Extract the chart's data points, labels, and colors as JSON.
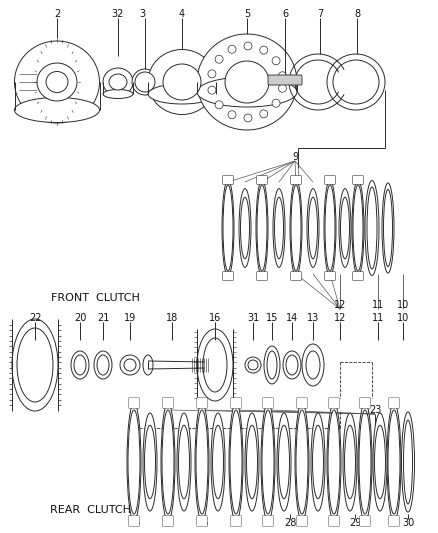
{
  "bg_color": "#ffffff",
  "lc": "#2a2a2a",
  "lw": 0.7,
  "front_clutch_label": "FRONT  CLUTCH",
  "rear_clutch_label": "REAR  CLUTCH",
  "figw": 4.38,
  "figh": 5.33,
  "dpi": 100
}
